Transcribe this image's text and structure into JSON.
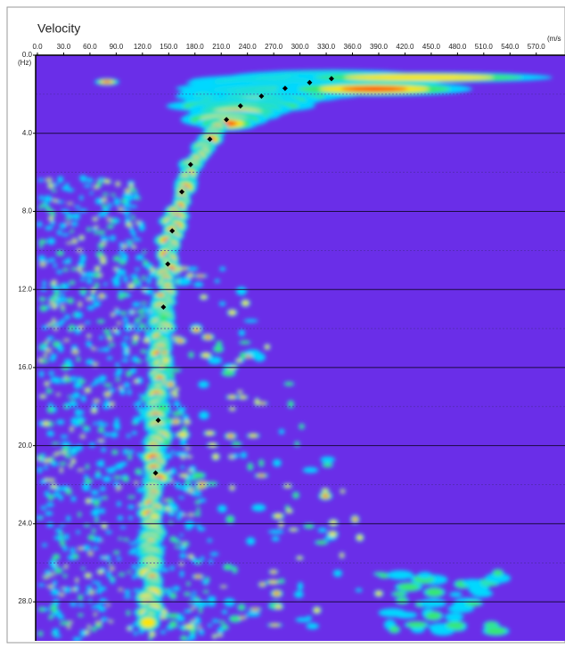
{
  "chart_data": {
    "type": "scatter",
    "title": "Velocity",
    "xlabel": "(m/s",
    "ylabel": "(Hz)",
    "x": [
      336,
      311,
      283,
      256,
      232,
      216,
      197,
      175,
      165,
      154,
      149,
      144,
      138,
      135
    ],
    "values": [
      1.2,
      1.4,
      1.7,
      2.1,
      2.6,
      3.3,
      4.3,
      5.6,
      7.0,
      9.0,
      10.7,
      12.9,
      18.7,
      21.4
    ],
    "color": "#000000",
    "xlim": [
      0,
      605
    ],
    "ylim": [
      0,
      30
    ],
    "xticks": [
      {
        "value": 0,
        "label": "0.0"
      },
      {
        "value": 30,
        "label": "30.0"
      },
      {
        "value": 60,
        "label": "60.0"
      },
      {
        "value": 90,
        "label": "90.0"
      },
      {
        "value": 120,
        "label": "120.0"
      },
      {
        "value": 150,
        "label": "150.0"
      },
      {
        "value": 180,
        "label": "180.0"
      },
      {
        "value": 210,
        "label": "210.0"
      },
      {
        "value": 240,
        "label": "240.0"
      },
      {
        "value": 270,
        "label": "270.0"
      },
      {
        "value": 300,
        "label": "300.0"
      },
      {
        "value": 330,
        "label": "330.0"
      },
      {
        "value": 360,
        "label": "360.0"
      },
      {
        "value": 390,
        "label": "390.0"
      },
      {
        "value": 420,
        "label": "420.0"
      },
      {
        "value": 450,
        "label": "450.0"
      },
      {
        "value": 480,
        "label": "480.0"
      },
      {
        "value": 510,
        "label": "510.0"
      },
      {
        "value": 540,
        "label": "540.0"
      },
      {
        "value": 570,
        "label": "570.0"
      }
    ],
    "yticks": [
      {
        "value": 0,
        "label": "0.0"
      },
      {
        "value": 4,
        "label": "4.0"
      },
      {
        "value": 8,
        "label": "8.0"
      },
      {
        "value": 12,
        "label": "12.0"
      },
      {
        "value": 16,
        "label": "16.0"
      },
      {
        "value": 20,
        "label": "20.0"
      },
      {
        "value": 24,
        "label": "24.0"
      },
      {
        "value": 28,
        "label": "28.0"
      }
    ],
    "grid": true
  }
}
